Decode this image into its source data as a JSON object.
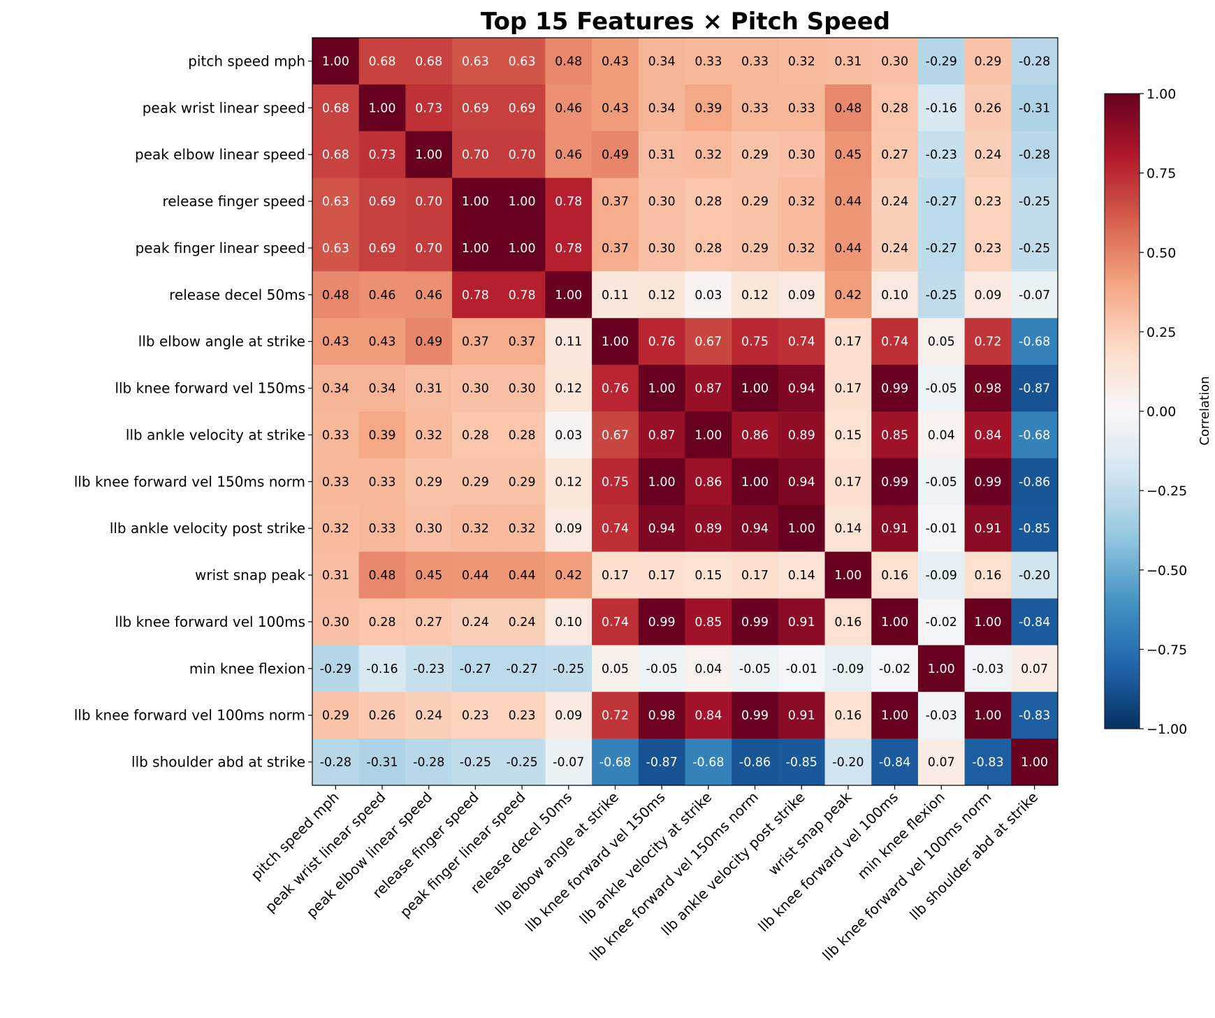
{
  "chart_data": {
    "type": "heatmap",
    "title": "Top 15 Features × Pitch Speed",
    "labels": [
      "pitch speed mph",
      "peak wrist linear speed",
      "peak elbow linear speed",
      "release finger speed",
      "peak finger linear speed",
      "release decel 50ms",
      "llb elbow angle at strike",
      "llb knee forward vel 150ms",
      "llb ankle velocity at strike",
      "llb knee forward vel 150ms norm",
      "llb ankle velocity post strike",
      "wrist snap peak",
      "llb knee forward vel 100ms",
      "min knee flexion",
      "llb knee forward vel 100ms norm",
      "llb shoulder abd at strike"
    ],
    "values": [
      [
        1.0,
        0.68,
        0.68,
        0.63,
        0.63,
        0.48,
        0.43,
        0.34,
        0.33,
        0.33,
        0.32,
        0.31,
        0.3,
        -0.29,
        0.29,
        -0.28
      ],
      [
        0.68,
        1.0,
        0.73,
        0.69,
        0.69,
        0.46,
        0.43,
        0.34,
        0.39,
        0.33,
        0.33,
        0.48,
        0.28,
        -0.16,
        0.26,
        -0.31
      ],
      [
        0.68,
        0.73,
        1.0,
        0.7,
        0.7,
        0.46,
        0.49,
        0.31,
        0.32,
        0.29,
        0.3,
        0.45,
        0.27,
        -0.23,
        0.24,
        -0.28
      ],
      [
        0.63,
        0.69,
        0.7,
        1.0,
        1.0,
        0.78,
        0.37,
        0.3,
        0.28,
        0.29,
        0.32,
        0.44,
        0.24,
        -0.27,
        0.23,
        -0.25
      ],
      [
        0.63,
        0.69,
        0.7,
        1.0,
        1.0,
        0.78,
        0.37,
        0.3,
        0.28,
        0.29,
        0.32,
        0.44,
        0.24,
        -0.27,
        0.23,
        -0.25
      ],
      [
        0.48,
        0.46,
        0.46,
        0.78,
        0.78,
        1.0,
        0.11,
        0.12,
        0.03,
        0.12,
        0.09,
        0.42,
        0.1,
        -0.25,
        0.09,
        -0.07
      ],
      [
        0.43,
        0.43,
        0.49,
        0.37,
        0.37,
        0.11,
        1.0,
        0.76,
        0.67,
        0.75,
        0.74,
        0.17,
        0.74,
        0.05,
        0.72,
        -0.68
      ],
      [
        0.34,
        0.34,
        0.31,
        0.3,
        0.3,
        0.12,
        0.76,
        1.0,
        0.87,
        1.0,
        0.94,
        0.17,
        0.99,
        -0.05,
        0.98,
        -0.87
      ],
      [
        0.33,
        0.39,
        0.32,
        0.28,
        0.28,
        0.03,
        0.67,
        0.87,
        1.0,
        0.86,
        0.89,
        0.15,
        0.85,
        0.04,
        0.84,
        -0.68
      ],
      [
        0.33,
        0.33,
        0.29,
        0.29,
        0.29,
        0.12,
        0.75,
        1.0,
        0.86,
        1.0,
        0.94,
        0.17,
        0.99,
        -0.05,
        0.99,
        -0.86
      ],
      [
        0.32,
        0.33,
        0.3,
        0.32,
        0.32,
        0.09,
        0.74,
        0.94,
        0.89,
        0.94,
        1.0,
        0.14,
        0.91,
        -0.01,
        0.91,
        -0.85
      ],
      [
        0.31,
        0.48,
        0.45,
        0.44,
        0.44,
        0.42,
        0.17,
        0.17,
        0.15,
        0.17,
        0.14,
        1.0,
        0.16,
        -0.09,
        0.16,
        -0.2
      ],
      [
        0.3,
        0.28,
        0.27,
        0.24,
        0.24,
        0.1,
        0.74,
        0.99,
        0.85,
        0.99,
        0.91,
        0.16,
        1.0,
        -0.02,
        1.0,
        -0.84
      ],
      [
        -0.29,
        -0.16,
        -0.23,
        -0.27,
        -0.27,
        -0.25,
        0.05,
        -0.05,
        0.04,
        -0.05,
        -0.01,
        -0.09,
        -0.02,
        1.0,
        -0.03,
        0.07
      ],
      [
        0.29,
        0.26,
        0.24,
        0.23,
        0.23,
        0.09,
        0.72,
        0.98,
        0.84,
        0.99,
        0.91,
        0.16,
        1.0,
        -0.03,
        1.0,
        -0.83
      ],
      [
        -0.28,
        -0.31,
        -0.28,
        -0.25,
        -0.25,
        -0.07,
        -0.68,
        -0.87,
        -0.68,
        -0.86,
        -0.85,
        -0.2,
        -0.84,
        0.07,
        -0.83,
        1.0
      ]
    ],
    "colormap": "RdBu_r",
    "vmin": -1.0,
    "vmax": 1.0,
    "colorbar": {
      "label": "Correlation",
      "ticks": [
        "1.00",
        "0.75",
        "0.50",
        "0.25",
        "0.00",
        "−0.25",
        "−0.50",
        "−0.75",
        "−1.00"
      ],
      "placement": "right"
    }
  }
}
